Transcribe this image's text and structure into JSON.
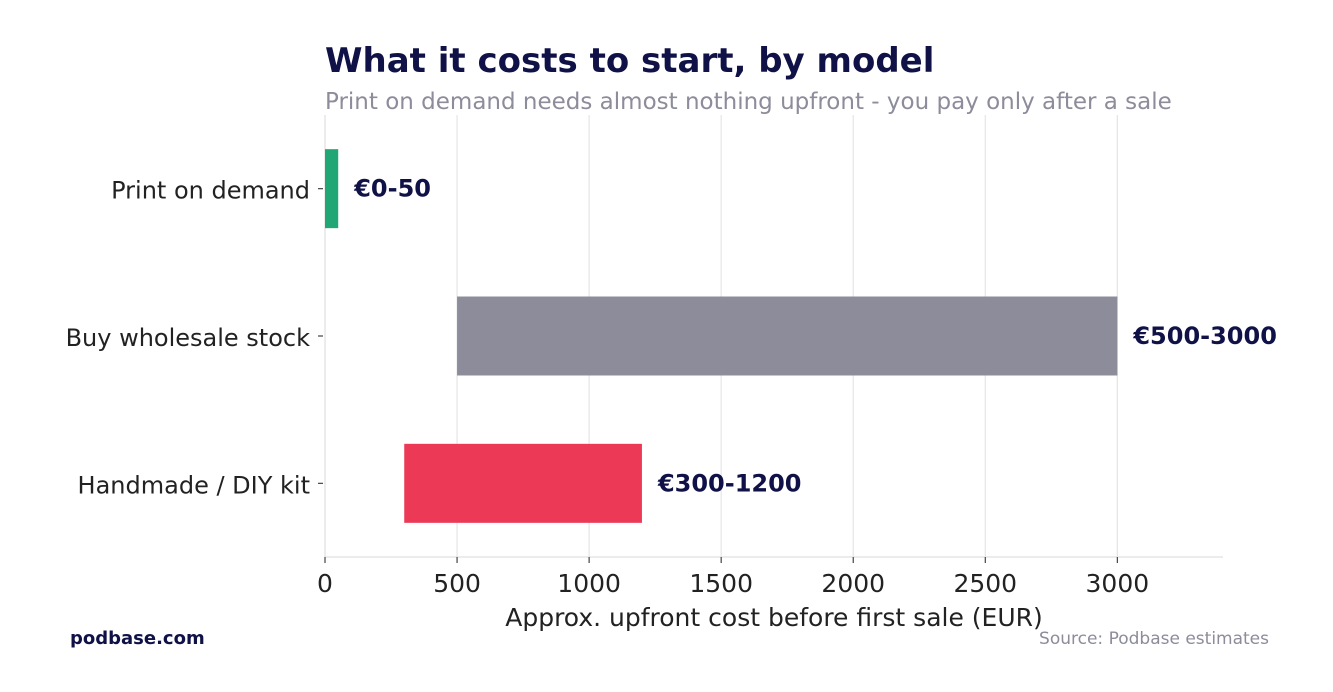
{
  "chart_data": {
    "type": "bar",
    "orientation": "horizontal",
    "title": "What it costs to start, by model",
    "subtitle": "Print on demand needs almost nothing upfront - you pay only after a sale",
    "xlabel": "Approx. upfront cost before first sale (EUR)",
    "ylabel": "",
    "xlim": [
      0,
      3400
    ],
    "xticks": [
      0,
      500,
      1000,
      1500,
      2000,
      2500,
      3000
    ],
    "grid": "vertical",
    "categories": [
      "Print on demand",
      "Buy wholesale stock",
      "Handmade / DIY kit"
    ],
    "ranges": [
      {
        "low": 0,
        "high": 50,
        "label": "€0-50",
        "color": "#21a675"
      },
      {
        "low": 500,
        "high": 3000,
        "label": "€500-3000",
        "color": "#8c8c9b"
      },
      {
        "low": 300,
        "high": 1200,
        "label": "€300-1200",
        "color": "#ec3a56"
      }
    ]
  },
  "footer": {
    "brand": "podbase.com",
    "source": "Source: Podbase estimates"
  },
  "colors": {
    "title": "#0f1147",
    "muted": "#8c8c9b",
    "grid": "#e5e5e5",
    "text": "#222222"
  }
}
